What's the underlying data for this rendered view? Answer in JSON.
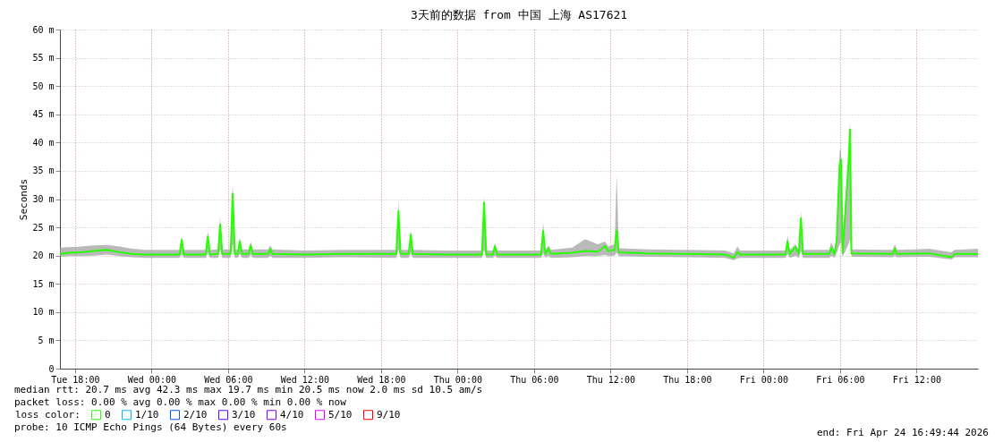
{
  "chart_data": {
    "type": "line",
    "title": "3天前的数据 from 中国 上海 AS17621",
    "ylabel": "Seconds",
    "legend_title": "loss color:",
    "legend": "bottom left",
    "grid": true,
    "xlim": [
      "2026-04-21T16:49",
      "2026-04-24T16:49"
    ],
    "xticks": [
      {
        "value": "2026-04-21T18:00",
        "label": "Tue 18:00"
      },
      {
        "value": "2026-04-22T00:00",
        "label": "Wed 00:00"
      },
      {
        "value": "2026-04-22T06:00",
        "label": "Wed 06:00"
      },
      {
        "value": "2026-04-22T12:00",
        "label": "Wed 12:00"
      },
      {
        "value": "2026-04-22T18:00",
        "label": "Wed 18:00"
      },
      {
        "value": "2026-04-23T00:00",
        "label": "Thu 00:00"
      },
      {
        "value": "2026-04-23T06:00",
        "label": "Thu 06:00"
      },
      {
        "value": "2026-04-23T12:00",
        "label": "Thu 12:00"
      },
      {
        "value": "2026-04-23T18:00",
        "label": "Thu 18:00"
      },
      {
        "value": "2026-04-24T00:00",
        "label": "Fri 00:00"
      },
      {
        "value": "2026-04-24T06:00",
        "label": "Fri 06:00"
      },
      {
        "value": "2026-04-24T12:00",
        "label": "Fri 12:00"
      }
    ],
    "ylim": [
      0,
      60
    ],
    "yticks": [
      0,
      {
        "value": 5,
        "label": "5 m"
      },
      {
        "value": 10,
        "label": "10 m"
      },
      {
        "value": 15,
        "label": "15 m"
      },
      {
        "value": 20,
        "label": "20 m"
      },
      {
        "value": 25,
        "label": "25 m"
      },
      {
        "value": 30,
        "label": "30 m"
      },
      {
        "value": 35,
        "label": "35 m"
      },
      {
        "value": 40,
        "label": "40 m"
      },
      {
        "value": 45,
        "label": "45 m"
      },
      {
        "value": 50,
        "label": "50 m"
      },
      {
        "value": 55,
        "label": "55 m"
      },
      {
        "value": 60,
        "label": "60 m"
      }
    ],
    "x": [
      "2026-04-21T16:50",
      "2026-04-21T17:30",
      "2026-04-21T18:30",
      "2026-04-21T19:30",
      "2026-04-21T20:30",
      "2026-04-21T21:30",
      "2026-04-21T22:30",
      "2026-04-21T23:30",
      "2026-04-22T01:00",
      "2026-04-22T02:12",
      "2026-04-22T02:22",
      "2026-04-22T02:32",
      "2026-04-22T04:15",
      "2026-04-22T04:25",
      "2026-04-22T04:35",
      "2026-04-22T05:13",
      "2026-04-22T05:23",
      "2026-04-22T05:33",
      "2026-04-22T06:12",
      "2026-04-22T06:22",
      "2026-04-22T06:32",
      "2026-04-22T06:46",
      "2026-04-22T06:56",
      "2026-04-22T07:06",
      "2026-04-22T07:37",
      "2026-04-22T07:47",
      "2026-04-22T07:57",
      "2026-04-22T09:09",
      "2026-04-22T09:19",
      "2026-04-22T09:29",
      "2026-04-22T12:00",
      "2026-04-22T15:00",
      "2026-04-22T19:12",
      "2026-04-22T19:22",
      "2026-04-22T19:32",
      "2026-04-22T20:10",
      "2026-04-22T20:20",
      "2026-04-22T20:30",
      "2026-04-22T23:00",
      "2026-04-23T01:55",
      "2026-04-23T02:05",
      "2026-04-23T02:15",
      "2026-04-23T02:46",
      "2026-04-23T02:56",
      "2026-04-23T03:06",
      "2026-04-23T06:33",
      "2026-04-23T06:43",
      "2026-04-23T06:53",
      "2026-04-23T07:09",
      "2026-04-23T07:19",
      "2026-04-23T09:00",
      "2026-04-23T10:00",
      "2026-04-23T11:00",
      "2026-04-23T11:34",
      "2026-04-23T11:50",
      "2026-04-23T12:19",
      "2026-04-23T12:29",
      "2026-04-23T12:39",
      "2026-04-23T15:00",
      "2026-04-23T18:00",
      "2026-04-23T21:00",
      "2026-04-23T21:40",
      "2026-04-23T21:57",
      "2026-04-23T22:10",
      "2026-04-24T00:00",
      "2026-04-24T01:43",
      "2026-04-24T01:53",
      "2026-04-24T02:03",
      "2026-04-24T02:31",
      "2026-04-24T02:46",
      "2026-04-24T02:56",
      "2026-04-24T03:06",
      "2026-04-24T05:09",
      "2026-04-24T05:19",
      "2026-04-24T05:34",
      "2026-04-24T05:44",
      "2026-04-24T05:58",
      "2026-04-24T06:05",
      "2026-04-24T06:12",
      "2026-04-24T06:40",
      "2026-04-24T06:47",
      "2026-04-24T06:54",
      "2026-04-24T10:08",
      "2026-04-24T10:18",
      "2026-04-24T10:28",
      "2026-04-24T13:00",
      "2026-04-24T14:43",
      "2026-04-24T15:00",
      "2026-04-24T16:49"
    ],
    "series": [
      {
        "name": "0",
        "color": "#26ff00",
        "values": [
          20.3,
          20.5,
          20.6,
          20.8,
          21.0,
          20.6,
          20.3,
          20.2,
          20.2,
          20.2,
          22.8,
          20.2,
          20.2,
          23.4,
          20.2,
          20.3,
          25.5,
          20.3,
          20.3,
          31.0,
          20.3,
          20.3,
          22.5,
          20.3,
          20.3,
          21.8,
          20.3,
          20.3,
          21.2,
          20.3,
          20.2,
          20.3,
          20.3,
          27.9,
          20.3,
          20.3,
          23.7,
          20.3,
          20.2,
          20.2,
          29.4,
          20.2,
          20.2,
          21.7,
          20.2,
          20.2,
          24.4,
          20.3,
          21.2,
          20.3,
          20.5,
          20.8,
          20.7,
          21.7,
          20.8,
          21.0,
          24.4,
          20.6,
          20.4,
          20.3,
          20.2,
          19.6,
          20.6,
          20.2,
          20.2,
          20.2,
          22.5,
          20.3,
          21.5,
          20.3,
          26.6,
          20.3,
          20.3,
          21.4,
          20.3,
          22.5,
          36.0,
          37.0,
          20.5,
          36.5,
          42.3,
          20.4,
          20.3,
          21.2,
          20.3,
          20.4,
          19.7,
          20.3,
          20.3
        ],
        "lower": [
          19.8,
          19.9,
          19.9,
          20.0,
          20.2,
          19.9,
          19.7,
          19.6,
          19.6,
          19.6,
          20.3,
          19.6,
          19.6,
          20.5,
          19.6,
          19.6,
          21.0,
          19.6,
          19.6,
          22.0,
          19.6,
          19.6,
          20.3,
          19.6,
          19.6,
          20.2,
          19.6,
          19.6,
          20.0,
          19.6,
          19.6,
          19.7,
          19.6,
          21.0,
          19.6,
          19.6,
          20.5,
          19.6,
          19.6,
          19.6,
          21.0,
          19.6,
          19.6,
          20.0,
          19.6,
          19.6,
          20.5,
          19.6,
          20.0,
          19.6,
          19.7,
          19.9,
          19.9,
          20.1,
          19.9,
          20.0,
          20.6,
          19.9,
          19.8,
          19.7,
          19.6,
          19.2,
          19.5,
          19.6,
          19.6,
          19.6,
          20.3,
          19.6,
          20.0,
          19.6,
          20.8,
          19.6,
          19.6,
          20.0,
          19.6,
          20.4,
          22.0,
          22.5,
          19.8,
          22.0,
          23.0,
          19.8,
          19.7,
          20.0,
          19.7,
          19.8,
          19.3,
          19.7,
          19.7
        ],
        "upper": [
          21.4,
          21.5,
          21.6,
          21.8,
          21.9,
          21.6,
          21.2,
          21.0,
          21.0,
          21.0,
          23.3,
          21.0,
          21.0,
          24.3,
          21.0,
          21.1,
          26.7,
          21.1,
          21.1,
          32.7,
          21.1,
          21.1,
          23.2,
          21.1,
          21.1,
          22.4,
          21.1,
          21.1,
          21.8,
          21.1,
          20.9,
          21.0,
          21.0,
          29.7,
          21.0,
          21.0,
          24.5,
          21.0,
          20.9,
          20.9,
          30.6,
          20.9,
          20.9,
          22.2,
          20.9,
          20.9,
          25.8,
          21.0,
          21.8,
          21.0,
          21.4,
          22.9,
          22.0,
          22.5,
          21.6,
          22.0,
          34.3,
          21.3,
          21.1,
          21.0,
          20.9,
          20.4,
          21.6,
          20.9,
          20.9,
          20.9,
          23.6,
          21.0,
          22.0,
          21.0,
          27.9,
          21.0,
          21.0,
          22.4,
          21.0,
          23.8,
          38.4,
          39.0,
          21.2,
          37.5,
          43.6,
          21.1,
          21.0,
          22.0,
          21.0,
          21.2,
          20.6,
          21.0,
          21.2
        ]
      },
      {
        "name": "1/10",
        "color": "#00b8ff",
        "values": [
          null,
          null,
          null,
          null,
          null,
          null,
          null,
          null,
          null,
          null,
          null,
          null,
          null,
          null,
          null,
          null,
          null,
          null,
          null,
          null,
          null,
          null,
          null,
          null,
          null,
          null,
          null,
          null,
          null,
          null,
          null,
          null,
          null,
          null,
          null,
          null,
          null,
          null,
          null,
          null,
          null,
          null,
          null,
          null,
          null,
          null,
          null,
          null,
          null,
          null,
          null,
          null,
          null,
          null,
          null,
          null,
          null,
          null,
          null,
          null,
          null,
          null,
          null,
          null,
          null,
          null,
          null,
          null,
          null,
          null,
          null,
          null,
          null,
          null,
          null,
          null,
          null,
          null,
          null,
          null,
          null,
          null,
          null,
          null,
          null,
          null,
          null,
          null,
          null
        ]
      },
      {
        "name": "2/10",
        "color": "#0059ff",
        "values": [
          null,
          null,
          null,
          null,
          null,
          null,
          null,
          null,
          null,
          null,
          null,
          null,
          null,
          null,
          null,
          null,
          null,
          null,
          null,
          null,
          null,
          null,
          null,
          null,
          null,
          null,
          null,
          null,
          null,
          null,
          null,
          null,
          null,
          null,
          null,
          null,
          null,
          null,
          null,
          null,
          null,
          null,
          null,
          null,
          null,
          null,
          null,
          null,
          null,
          null,
          null,
          null,
          null,
          null,
          null,
          null,
          null,
          null,
          null,
          null,
          null,
          null,
          null,
          null,
          null,
          null,
          null,
          null,
          null,
          null,
          null,
          null,
          null,
          null,
          null,
          null,
          null,
          null,
          null,
          null,
          null,
          null,
          null,
          null,
          null,
          null,
          null,
          null,
          null
        ]
      },
      {
        "name": "3/10",
        "color": "#5e00ff",
        "values": [
          null,
          null,
          null,
          null,
          null,
          null,
          null,
          null,
          null,
          null,
          null,
          null,
          null,
          null,
          null,
          null,
          null,
          null,
          null,
          null,
          null,
          null,
          null,
          null,
          null,
          null,
          null,
          null,
          null,
          null,
          null,
          null,
          null,
          null,
          null,
          null,
          null,
          null,
          null,
          null,
          null,
          null,
          null,
          null,
          null,
          null,
          null,
          null,
          null,
          null,
          null,
          null,
          null,
          null,
          null,
          null,
          null,
          null,
          null,
          null,
          null,
          null,
          null,
          null,
          null,
          null,
          null,
          null,
          null,
          null,
          null,
          null,
          null,
          null,
          null,
          null,
          null,
          null,
          null,
          null,
          null,
          null,
          null,
          null,
          null,
          null,
          null,
          null,
          null
        ]
      },
      {
        "name": "4/10",
        "color": "#7e00ff",
        "values": [
          null,
          null,
          null,
          null,
          null,
          null,
          null,
          null,
          null,
          null,
          null,
          null,
          null,
          null,
          null,
          null,
          null,
          null,
          null,
          null,
          null,
          null,
          null,
          null,
          null,
          null,
          null,
          null,
          null,
          null,
          null,
          null,
          null,
          null,
          null,
          null,
          null,
          null,
          null,
          null,
          null,
          null,
          null,
          null,
          null,
          null,
          null,
          null,
          null,
          null,
          null,
          null,
          null,
          null,
          null,
          null,
          null,
          null,
          null,
          null,
          null,
          null,
          null,
          null,
          null,
          null,
          null,
          null,
          null,
          null,
          null,
          null,
          null,
          null,
          null,
          null,
          null,
          null,
          null,
          null,
          null,
          null,
          null,
          null,
          null,
          null,
          null,
          null,
          null
        ]
      },
      {
        "name": "5/10",
        "color": "#dd00ff",
        "values": [
          null,
          null,
          null,
          null,
          null,
          null,
          null,
          null,
          null,
          null,
          null,
          null,
          null,
          null,
          null,
          null,
          null,
          null,
          null,
          null,
          null,
          null,
          null,
          null,
          null,
          null,
          null,
          null,
          null,
          null,
          null,
          null,
          null,
          null,
          null,
          null,
          null,
          null,
          null,
          null,
          null,
          null,
          null,
          null,
          null,
          null,
          null,
          null,
          null,
          null,
          null,
          null,
          null,
          null,
          null,
          null,
          null,
          null,
          null,
          null,
          null,
          null,
          null,
          null,
          null,
          null,
          null,
          null,
          null,
          null,
          null,
          null,
          null,
          null,
          null,
          null,
          null,
          null,
          null,
          null,
          null,
          null,
          null,
          null,
          null,
          null,
          null,
          null,
          null
        ]
      },
      {
        "name": "9/10",
        "color": "#ff0000",
        "values": [
          null,
          null,
          null,
          null,
          null,
          null,
          null,
          null,
          null,
          null,
          null,
          null,
          null,
          null,
          null,
          null,
          null,
          null,
          null,
          null,
          null,
          null,
          null,
          null,
          null,
          null,
          null,
          null,
          null,
          null,
          null,
          null,
          null,
          null,
          null,
          null,
          null,
          null,
          null,
          null,
          null,
          null,
          null,
          null,
          null,
          null,
          null,
          null,
          null,
          null,
          null,
          null,
          null,
          null,
          null,
          null,
          null,
          null,
          null,
          null,
          null,
          null,
          null,
          null,
          null,
          null,
          null,
          null,
          null,
          null,
          null,
          null,
          null,
          null,
          null,
          null,
          null,
          null,
          null,
          null,
          null,
          null,
          null,
          null,
          null,
          null,
          null,
          null,
          null
        ]
      }
    ],
    "annotations": [
      "median rtt:  20.7 ms avg  42.3 ms max  19.7 ms min  20.5 ms now  2.0 ms sd  10.5   am/s",
      "packet loss: 0.00 % avg  0.00 % max  0.00 % min  0.00 % now",
      "probe:       10 ICMP Echo Pings (64 Bytes) every 60s",
      "end: Fri Apr 24 16:49:44 2026"
    ]
  }
}
